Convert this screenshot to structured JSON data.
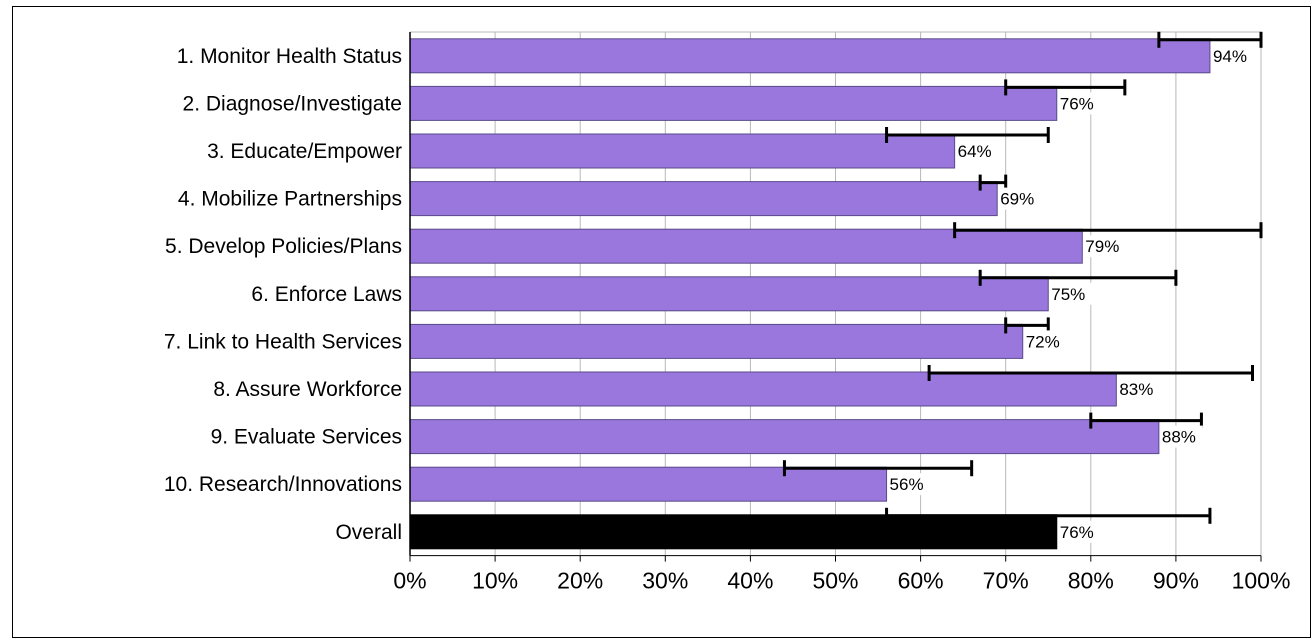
{
  "chart_data": {
    "type": "bar",
    "orientation": "horizontal",
    "title": "",
    "xlabel": "",
    "ylabel": "",
    "xlim": [
      0,
      100
    ],
    "x_ticks": [
      "0%",
      "10%",
      "20%",
      "30%",
      "40%",
      "50%",
      "60%",
      "70%",
      "80%",
      "90%",
      "100%"
    ],
    "grid": "vertical",
    "categories": [
      "1.  Monitor Health Status",
      "2.  Diagnose/Investigate",
      "3.  Educate/Empower",
      "4.  Mobilize Partnerships",
      "5.  Develop Policies/Plans",
      "6.  Enforce Laws",
      "7.  Link to Health Services",
      "8.  Assure Workforce",
      "9.  Evaluate Services",
      "10.  Research/Innovations",
      "Overall"
    ],
    "values": [
      94,
      76,
      64,
      69,
      79,
      75,
      72,
      83,
      88,
      56,
      76
    ],
    "value_labels": [
      "94%",
      "76%",
      "64%",
      "69%",
      "79%",
      "75%",
      "72%",
      "83%",
      "88%",
      "56%",
      "76%"
    ],
    "error_low": [
      88,
      70,
      56,
      67,
      64,
      67,
      70,
      61,
      80,
      44,
      56
    ],
    "error_high": [
      100,
      84,
      75,
      70,
      100,
      90,
      75,
      99,
      93,
      66,
      94
    ],
    "bar_color": "#9977dd",
    "overall_color": "#000000"
  }
}
